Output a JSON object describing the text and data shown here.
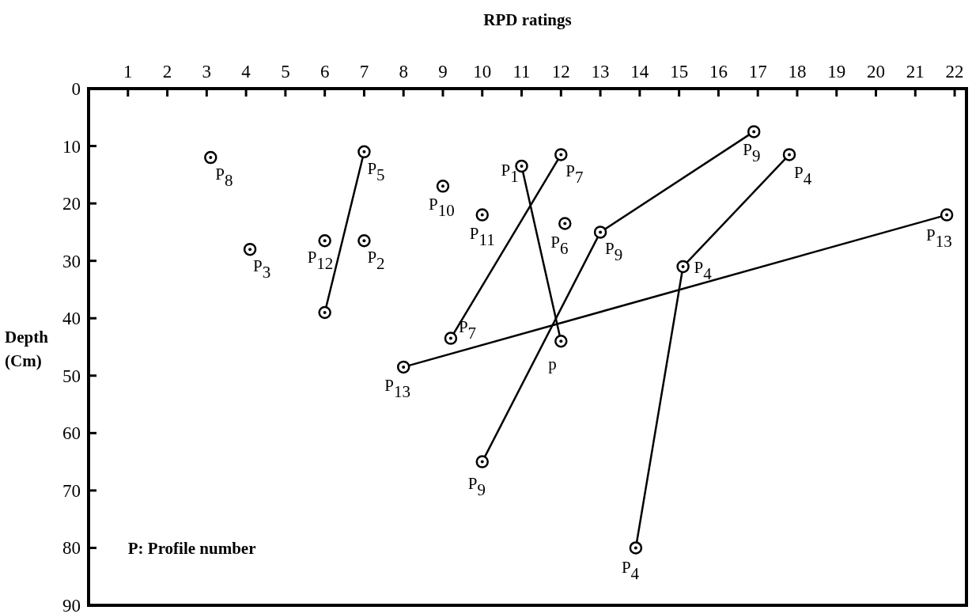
{
  "chart_data": {
    "type": "line",
    "xlabel": "RPD ratings",
    "ylabel": "Depth (Cm)",
    "xlim": [
      0,
      22.3
    ],
    "xticks": [
      1,
      2,
      3,
      4,
      5,
      6,
      7,
      8,
      9,
      10,
      11,
      12,
      13,
      14,
      15,
      16,
      17,
      18,
      19,
      20,
      21,
      22
    ],
    "ylim": [
      90,
      0
    ],
    "yticks": [
      0,
      10,
      20,
      30,
      40,
      50,
      60,
      70,
      80,
      90
    ],
    "marker": "circle",
    "line_style": "solid",
    "series": [
      {
        "type": "scatter",
        "color": "#000000",
        "x": [
          3.1
        ],
        "values": [
          12
        ]
      },
      {
        "type": "scatter",
        "color": "#000000",
        "x": [
          4.1
        ],
        "values": [
          28
        ]
      },
      {
        "type": "scatter",
        "color": "#000000",
        "x": [
          6
        ],
        "values": [
          26.5
        ]
      },
      {
        "type": "scatter",
        "color": "#000000",
        "x": [
          7
        ],
        "values": [
          26.5
        ]
      },
      {
        "color": "#000000",
        "x": [
          7,
          6
        ],
        "values": [
          11,
          39
        ]
      },
      {
        "type": "scatter",
        "color": "#000000",
        "x": [
          9
        ],
        "values": [
          17
        ]
      },
      {
        "type": "scatter",
        "color": "#000000",
        "x": [
          10
        ],
        "values": [
          22
        ]
      },
      {
        "type": "scatter",
        "color": "#000000",
        "x": [
          12.1
        ],
        "values": [
          23.5
        ]
      },
      {
        "color": "#000000",
        "x": [
          11,
          12
        ],
        "values": [
          13.5,
          44
        ]
      },
      {
        "color": "#000000",
        "x": [
          12,
          9.2
        ],
        "values": [
          11.5,
          43.5
        ]
      },
      {
        "color": "#000000",
        "x": [
          16.9,
          13,
          10
        ],
        "values": [
          7.5,
          25,
          65
        ]
      },
      {
        "color": "#000000",
        "x": [
          17.8,
          15.1,
          13.9
        ],
        "values": [
          11.5,
          31,
          80
        ]
      },
      {
        "color": "#000000",
        "x": [
          21.8,
          8
        ],
        "values": [
          22,
          48.5
        ]
      }
    ],
    "annotations": [
      {
        "text": "P$_{8}$",
        "x": 3.1,
        "y": 12
      },
      {
        "text": "P$_{3}$",
        "x": 4.1,
        "y": 28
      },
      {
        "text": "P$_{12}$",
        "x": 6,
        "y": 26.5
      },
      {
        "text": "P$_{2}$",
        "x": 7,
        "y": 26.5
      },
      {
        "text": "P$_{5}$",
        "x": 7,
        "y": 11
      },
      {
        "text": "P$_{10}$",
        "x": 9,
        "y": 17
      },
      {
        "text": "P$_{11}$",
        "x": 10,
        "y": 22
      },
      {
        "text": "P$_{6}$",
        "x": 12.1,
        "y": 23.5
      },
      {
        "text": "P$_{1}$",
        "x": 11,
        "y": 13.5
      },
      {
        "text": "p",
        "x": 12,
        "y": 44
      },
      {
        "text": "P$_{7}$",
        "x": 12,
        "y": 11.5
      },
      {
        "text": "P$_{7}$",
        "x": 9.2,
        "y": 43.5
      },
      {
        "text": "P$_{9}$",
        "x": 16.9,
        "y": 7.5
      },
      {
        "text": "P$_{9}$",
        "x": 13,
        "y": 25
      },
      {
        "text": "P$_{9}$",
        "x": 10,
        "y": 65
      },
      {
        "text": "P$_{4}$",
        "x": 17.8,
        "y": 11.5
      },
      {
        "text": "P$_{4}$",
        "x": 15.1,
        "y": 31
      },
      {
        "text": "P$_{4}$",
        "x": 13.9,
        "y": 80
      },
      {
        "text": "P$_{13}$",
        "x": 21.8,
        "y": 22
      },
      {
        "text": "P$_{13}$",
        "x": 8,
        "y": 48.5
      },
      "P: Profile number"
    ]
  }
}
